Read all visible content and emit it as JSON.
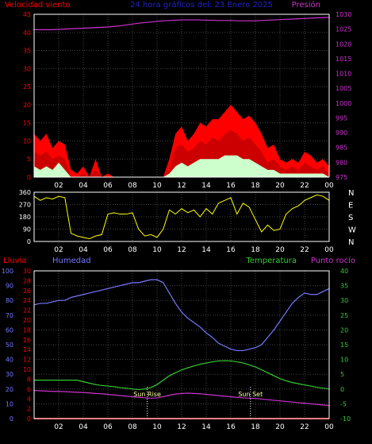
{
  "header": {
    "left_label": "Velocidad viento",
    "title": "24 hora gráficos del: 23 Enero 2025",
    "right_label": "Presión"
  },
  "colors": {
    "wind_avg": "#ff0000",
    "wind_gust": "#ff0000",
    "wind_low": "#ccffcc",
    "pressure": "#cc33cc",
    "direction": "#ffff00",
    "humidity": "#7777ff",
    "temperature": "#33cc33",
    "dewpoint": "#cc33cc",
    "rain": "#ff0000",
    "axis_left_top": "#ff0000",
    "axis_right_top": "#cc33cc",
    "axis_rain": "#ff0000",
    "axis_hum": "#7777ff",
    "axis_temp": "#33cc33",
    "grid": "#444444",
    "frame": "#ffffff"
  },
  "time_ticks": [
    "02",
    "04",
    "06",
    "08",
    "10",
    "12",
    "14",
    "16",
    "18",
    "20",
    "22",
    "00"
  ],
  "chart_data": [
    {
      "type": "area",
      "name": "wind_pressure",
      "ylabel_left": "Velocidad viento",
      "ylabel_right": "Presión",
      "ylim_left": [
        0,
        45
      ],
      "ylim_right": [
        975,
        1030
      ],
      "yticks_left": [
        0,
        5,
        10,
        15,
        20,
        25,
        30,
        35,
        40,
        45
      ],
      "yticks_right": [
        975,
        980,
        985,
        990,
        995,
        1000,
        1005,
        1010,
        1015,
        1020,
        1025,
        1030
      ],
      "x_hours": [
        0,
        0.5,
        1,
        1.5,
        2,
        2.5,
        3,
        3.5,
        4,
        4.5,
        5,
        5.5,
        6,
        6.5,
        7,
        7.5,
        8,
        8.5,
        9,
        9.5,
        10,
        10.5,
        11,
        11.5,
        12,
        12.5,
        13,
        13.5,
        14,
        14.5,
        15,
        15.5,
        16,
        16.5,
        17,
        17.5,
        18,
        18.5,
        19,
        19.5,
        20,
        20.5,
        21,
        21.5,
        22,
        22.5,
        23,
        23.5,
        24
      ],
      "series": [
        {
          "key": "gust",
          "values": [
            12,
            10,
            12,
            8,
            10,
            9,
            2,
            1,
            3,
            0,
            5,
            0,
            1,
            0,
            0,
            0,
            0,
            0,
            0,
            0,
            0,
            0,
            5,
            12,
            14,
            10,
            12,
            15,
            14,
            16,
            16,
            18,
            20,
            18,
            16,
            17,
            15,
            12,
            8,
            9,
            5,
            4,
            5,
            4,
            7,
            6,
            4,
            5,
            3
          ]
        },
        {
          "key": "avg",
          "values": [
            7,
            6,
            7,
            5,
            6,
            5,
            0,
            0,
            1,
            0,
            2,
            0,
            0,
            0,
            0,
            0,
            0,
            0,
            0,
            0,
            0,
            0,
            2,
            8,
            9,
            7,
            8,
            10,
            9,
            11,
            10,
            12,
            13,
            12,
            10,
            11,
            9,
            7,
            4,
            5,
            3,
            2,
            3,
            2,
            4,
            3,
            2,
            3,
            1
          ]
        },
        {
          "key": "low",
          "values": [
            3,
            2,
            3,
            2,
            4,
            2,
            0,
            0,
            0,
            0,
            0,
            0,
            0,
            0,
            0,
            0,
            0,
            0,
            0,
            0,
            0,
            0,
            1,
            3,
            4,
            3,
            4,
            5,
            5,
            5,
            5,
            6,
            6,
            6,
            5,
            5,
            4,
            3,
            2,
            2,
            1,
            1,
            1,
            1,
            1,
            1,
            1,
            1,
            0
          ]
        },
        {
          "key": "pressure",
          "values": [
            1024.8,
            1024.8,
            1024.8,
            1024.8,
            1024.9,
            1025,
            1025.1,
            1025.2,
            1025.3,
            1025.4,
            1025.5,
            1025.6,
            1025.7,
            1025.9,
            1026.1,
            1026.4,
            1026.7,
            1027,
            1027.2,
            1027.4,
            1027.6,
            1027.8,
            1027.9,
            1028,
            1028.1,
            1028.1,
            1028.1,
            1028.1,
            1028,
            1028,
            1027.9,
            1027.9,
            1027.9,
            1027.8,
            1027.8,
            1027.8,
            1027.8,
            1027.9,
            1028,
            1028.1,
            1028.2,
            1028.3,
            1028.4,
            1028.5,
            1028.6,
            1028.7,
            1028.8,
            1028.9,
            1029
          ]
        }
      ]
    },
    {
      "type": "line",
      "name": "wind_direction",
      "ylim": [
        0,
        360
      ],
      "yticks": [
        0,
        90,
        180,
        270,
        360
      ],
      "compass": [
        "N",
        "W",
        "S",
        "E",
        "N"
      ],
      "x_hours": [
        0,
        0.5,
        1,
        1.5,
        2,
        2.5,
        3,
        3.5,
        4,
        4.5,
        5,
        5.5,
        6,
        6.5,
        7,
        7.5,
        8,
        8.5,
        9,
        9.5,
        10,
        10.5,
        11,
        11.5,
        12,
        12.5,
        13,
        13.5,
        14,
        14.5,
        15,
        15.5,
        16,
        16.5,
        17,
        17.5,
        18,
        18.5,
        19,
        19.5,
        20,
        20.5,
        21,
        21.5,
        22,
        22.5,
        23,
        23.5,
        24
      ],
      "values": [
        330,
        300,
        320,
        310,
        330,
        320,
        60,
        40,
        30,
        20,
        40,
        50,
        200,
        210,
        200,
        200,
        210,
        90,
        40,
        50,
        30,
        90,
        230,
        200,
        240,
        210,
        230,
        180,
        240,
        200,
        280,
        300,
        320,
        200,
        280,
        250,
        160,
        70,
        120,
        80,
        90,
        200,
        240,
        260,
        300,
        320,
        340,
        330,
        300
      ]
    },
    {
      "type": "line",
      "name": "humidity_temperature",
      "ylabels": [
        "Lluvia",
        "Humedad",
        "Temperatura",
        "Punto rocío"
      ],
      "ylim_rain": [
        0,
        30
      ],
      "ylim_humidity": [
        0,
        100
      ],
      "ylim_temperature": [
        -10,
        40
      ],
      "yticks_rain": [
        0,
        2,
        4,
        6,
        8,
        10,
        12,
        14,
        16,
        18,
        20,
        22,
        24,
        26,
        28,
        30
      ],
      "yticks_humidity": [
        0,
        10,
        20,
        30,
        40,
        50,
        60,
        70,
        80,
        90,
        100
      ],
      "yticks_temperature": [
        -10,
        -5,
        0,
        5,
        10,
        15,
        20,
        25,
        30,
        35,
        40
      ],
      "annotations": [
        {
          "label": "Sun Rise",
          "hour": 9.2
        },
        {
          "label": "Sun Set",
          "hour": 17.6
        }
      ],
      "x_hours": [
        0,
        0.5,
        1,
        1.5,
        2,
        2.5,
        3,
        3.5,
        4,
        4.5,
        5,
        5.5,
        6,
        6.5,
        7,
        7.5,
        8,
        8.5,
        9,
        9.5,
        10,
        10.5,
        11,
        11.5,
        12,
        12.5,
        13,
        13.5,
        14,
        14.5,
        15,
        15.5,
        16,
        16.5,
        17,
        17.5,
        18,
        18.5,
        19,
        19.5,
        20,
        20.5,
        21,
        21.5,
        22,
        22.5,
        23,
        23.5,
        24
      ],
      "series": [
        {
          "key": "humidity",
          "values": [
            77,
            78,
            78,
            79,
            80,
            80,
            82,
            83,
            84,
            85,
            86,
            87,
            88,
            89,
            90,
            91,
            92,
            92,
            93,
            94,
            94,
            92,
            85,
            78,
            72,
            68,
            65,
            62,
            58,
            55,
            51,
            49,
            47,
            46,
            46,
            47,
            48,
            50,
            55,
            60,
            66,
            72,
            78,
            82,
            85,
            84,
            84,
            86,
            88
          ]
        },
        {
          "key": "temperature",
          "values": [
            3,
            3,
            3,
            3,
            3,
            3,
            3,
            3,
            2.5,
            2,
            1.5,
            1.2,
            1,
            0.8,
            0.5,
            0.3,
            0,
            -0.2,
            0,
            0.5,
            1.5,
            3,
            4.5,
            5.5,
            6.5,
            7.2,
            7.8,
            8.4,
            8.8,
            9.2,
            9.5,
            9.6,
            9.5,
            9.2,
            8.8,
            8.2,
            7.5,
            6.5,
            5.5,
            4.5,
            3.5,
            2.8,
            2.2,
            1.8,
            1.4,
            1,
            0.6,
            0.3,
            0
          ]
        },
        {
          "key": "dewpoint",
          "values": [
            -0.5,
            -0.6,
            -0.7,
            -0.8,
            -0.8,
            -0.9,
            -1,
            -1.1,
            -1.2,
            -1.3,
            -1.5,
            -1.6,
            -1.8,
            -2,
            -2.2,
            -2.4,
            -2.6,
            -2.8,
            -3,
            -3.1,
            -3,
            -2.6,
            -2.1,
            -1.7,
            -1.5,
            -1.4,
            -1.5,
            -1.6,
            -1.8,
            -2,
            -2.2,
            -2.4,
            -2.6,
            -2.8,
            -3,
            -3.1,
            -3.2,
            -3.4,
            -3.6,
            -3.8,
            -4,
            -4.2,
            -4.4,
            -4.6,
            -4.8,
            -5,
            -5.2,
            -5.4,
            -5.6
          ]
        },
        {
          "key": "rain",
          "values": [
            0,
            0,
            0,
            0,
            0,
            0,
            0,
            0,
            0,
            0,
            0,
            0,
            0,
            0,
            0,
            0,
            0,
            0,
            0,
            0,
            0,
            0,
            0,
            0,
            0,
            0,
            0,
            0,
            0,
            0,
            0,
            0,
            0,
            0,
            0,
            0,
            0,
            0,
            0,
            0,
            0,
            0,
            0,
            0,
            0,
            0,
            0,
            0,
            0
          ]
        }
      ]
    }
  ]
}
